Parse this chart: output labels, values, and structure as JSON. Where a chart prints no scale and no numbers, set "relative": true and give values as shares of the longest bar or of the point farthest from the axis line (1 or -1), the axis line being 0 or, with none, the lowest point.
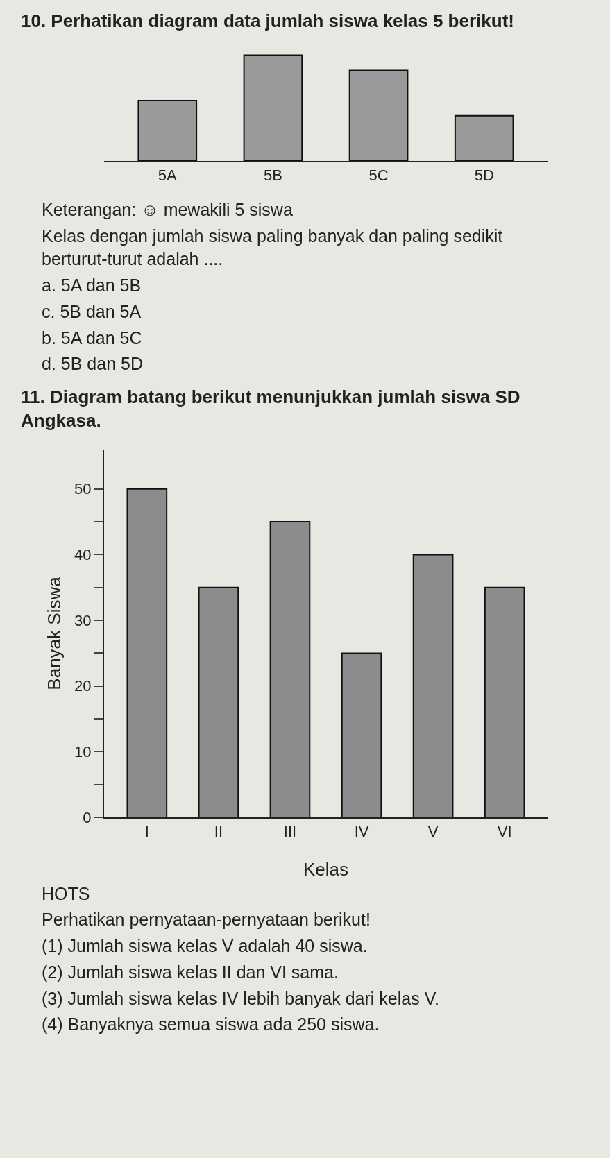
{
  "chart_data": [
    {
      "type": "bar",
      "title": "10. Perhatikan diagram data jumlah siswa kelas 5 berikut!",
      "categories": [
        "5A",
        "5B",
        "5C",
        "5D"
      ],
      "values": [
        0.571,
        1,
        0.857,
        0.429
      ],
      "relative": true,
      "color": "#9a9a9a",
      "annotations": [
        "Keterangan: ☺ mewakili 5 siswa",
        "Kelas dengan jumlah siswa paling banyak dan paling sedikit berturut-turut adalah ....",
        "a. 5A dan 5B",
        "c. 5B dan 5A",
        "b. 5A dan 5C",
        "d. 5B dan 5D"
      ]
    },
    {
      "type": "bar",
      "title": "11. Diagram batang berikut menunjukkan jumlah siswa SD Angkasa.",
      "categories": [
        "I",
        "II",
        "III",
        "IV",
        "V",
        "VI"
      ],
      "values": [
        50,
        35,
        45,
        25,
        40,
        35
      ],
      "color": "#8c8c8c",
      "xlabel": "Kelas",
      "ylabel": "Banyak Siswa",
      "ylim": [
        0,
        56
      ],
      "yticks": [
        0,
        {
          "value": 5,
          "label": null
        },
        10,
        {
          "value": 15,
          "label": null
        },
        20,
        {
          "value": 25,
          "label": null
        },
        30,
        {
          "value": 35,
          "label": null
        },
        40,
        {
          "value": 45,
          "label": null
        },
        50
      ],
      "annotations": [
        "HOTS",
        "Perhatikan pernyataan-pernyataan berikut!",
        "(1) Jumlah siswa kelas V adalah 40 siswa.",
        "(2) Jumlah siswa kelas II dan VI sama.",
        "(3) Jumlah siswa kelas IV lebih banyak dari kelas V.",
        "(4) Banyaknya semua siswa ada 250 siswa."
      ]
    }
  ]
}
